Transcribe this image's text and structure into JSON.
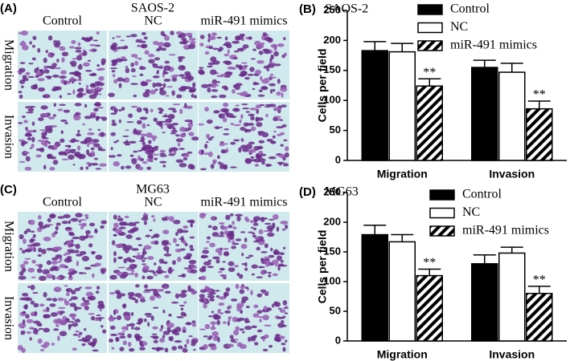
{
  "image_panels": [
    {
      "label": "(A)",
      "title": "SAOS-2",
      "columns": [
        "Control",
        "NC",
        "miR-491 mimics"
      ],
      "rows": [
        "Migration",
        "Invasion"
      ]
    },
    {
      "label": "(C)",
      "title": "MG63",
      "columns": [
        "Control",
        "NC",
        "miR-491 mimics"
      ],
      "rows": [
        "Migration",
        "Invasion"
      ]
    }
  ],
  "chart_data": [
    {
      "type": "bar",
      "label": "(B)",
      "title": "SAOS-2",
      "y_label": "Cells per field",
      "categories": [
        "Migration",
        "Invasion"
      ],
      "series": [
        {
          "name": "Control",
          "color": "#000000",
          "values": [
            183,
            155
          ],
          "errors": [
            15,
            12
          ]
        },
        {
          "name": "NC",
          "color": "#ffffff",
          "values": [
            181,
            147
          ],
          "errors": [
            14,
            15
          ]
        },
        {
          "name": "miR-491 mimics",
          "color": "#000000",
          "hatch": true,
          "values": [
            124,
            86
          ],
          "errors": [
            12,
            13
          ],
          "value_labels": [
            "**",
            "**"
          ]
        }
      ],
      "ylim": [
        0,
        250
      ],
      "yticks": [
        0,
        50,
        100,
        150,
        200,
        250
      ]
    },
    {
      "type": "bar",
      "label": "(D)",
      "title": "MG63",
      "y_label": "Cells per field",
      "categories": [
        "Migration",
        "Invasion"
      ],
      "series": [
        {
          "name": "Control",
          "color": "#000000",
          "values": [
            179,
            130
          ],
          "errors": [
            16,
            15
          ]
        },
        {
          "name": "NC",
          "color": "#ffffff",
          "values": [
            167,
            148
          ],
          "errors": [
            12,
            10
          ]
        },
        {
          "name": "miR-491 mimics",
          "color": "#000000",
          "hatch": true,
          "values": [
            110,
            80
          ],
          "errors": [
            11,
            12
          ],
          "value_labels": [
            "**",
            "**"
          ]
        }
      ],
      "ylim": [
        0,
        250
      ],
      "yticks": [
        0,
        50,
        100,
        150,
        200,
        250
      ]
    }
  ]
}
